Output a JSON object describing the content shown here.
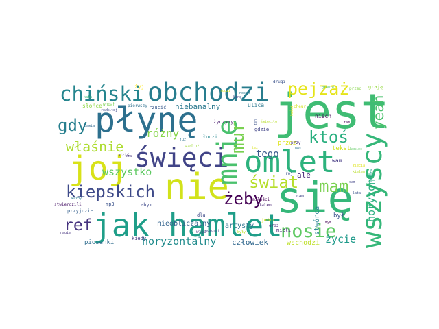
{
  "words": [
    {
      "id": "jest",
      "text": "jest",
      "color": "#3fbc73"
    },
    {
      "id": "sie",
      "text": "się",
      "color": "#35b779"
    },
    {
      "id": "nie",
      "text": "nie",
      "color": "#d2e21b"
    },
    {
      "id": "jak-hamlet",
      "text": "jak hamlet",
      "color": "#1f9e89"
    },
    {
      "id": "plyne",
      "text": "płynę",
      "color": "#2d708e"
    },
    {
      "id": "joj",
      "text": "joj",
      "color": "#d8e219"
    },
    {
      "id": "omlet",
      "text": "omlet",
      "color": "#2db27d"
    },
    {
      "id": "obchodzi",
      "text": "obchodzi",
      "color": "#287d8e"
    },
    {
      "id": "swieci",
      "text": "święci",
      "color": "#414487"
    },
    {
      "id": "wszyscy",
      "text": "wszyscy",
      "color": "#35b779"
    },
    {
      "id": "mnie",
      "text": "mnie",
      "color": "#4ac16d"
    },
    {
      "id": "chinski",
      "text": "chiński",
      "color": "#25858e"
    },
    {
      "id": "pejzaz",
      "text": "pejzaż",
      "color": "#e5e419"
    },
    {
      "id": "kiepskich",
      "text": "kiepskich",
      "color": "#3e4a89"
    },
    {
      "id": "nosie",
      "text": "nosie",
      "color": "#5ec962"
    },
    {
      "id": "mam",
      "text": "mam",
      "color": "#7ad151"
    },
    {
      "id": "swiat",
      "text": "świat",
      "color": "#b5de2b"
    },
    {
      "id": "mur",
      "text": "mur",
      "color": "#7ad151"
    },
    {
      "id": "ktos",
      "text": "ktoś",
      "color": "#29af7f"
    },
    {
      "id": "zeby",
      "text": "żeby",
      "color": "#440154"
    },
    {
      "id": "ref",
      "text": "ref",
      "color": "#46337e"
    },
    {
      "id": "gdy",
      "text": "gdy",
      "color": "#277f8e"
    },
    {
      "id": "wlasnie",
      "text": "właśnie",
      "color": "#addc30"
    },
    {
      "id": "yeah",
      "text": "yeah",
      "color": "#4ac16d"
    },
    {
      "id": "horyzontalny",
      "text": "horyzontalny",
      "color": "#228c8d"
    },
    {
      "id": "horyzont",
      "text": "horyzont",
      "color": "#29af7f"
    },
    {
      "id": "wszystko",
      "text": "wszystko",
      "color": "#5ec962"
    },
    {
      "id": "rozny",
      "text": "różny",
      "color": "#86d549"
    },
    {
      "id": "tego",
      "text": "tego",
      "color": "#38598c"
    },
    {
      "id": "zycie",
      "text": "życie",
      "color": "#1f9a8a"
    },
    {
      "id": "niebanalny",
      "text": "niebanalny",
      "color": "#2a788e"
    },
    {
      "id": "czlowiek",
      "text": "człowiek",
      "color": "#31688e"
    },
    {
      "id": "wschodzi",
      "text": "wschodzi",
      "color": "#bddf26"
    },
    {
      "id": "nieoblicz",
      "text": "nieobliczalny",
      "color": "#33638d"
    },
    {
      "id": "artysty",
      "text": "artysty",
      "color": "#2c728e"
    },
    {
      "id": "piosenki",
      "text": "piosenki",
      "color": "#2f6c8e"
    },
    {
      "id": "stworca",
      "text": "stwórca",
      "color": "#25838e"
    },
    {
      "id": "przez",
      "text": "przez",
      "color": "#dde318"
    },
    {
      "id": "ale",
      "text": "ale",
      "color": "#482878"
    },
    {
      "id": "byl",
      "text": "był",
      "color": "#3b528b"
    },
    {
      "id": "tekst",
      "text": "tekst",
      "color": "#d0e11c"
    },
    {
      "id": "wam",
      "text": "wam",
      "color": "#443983"
    },
    {
      "id": "mialem",
      "text": "miałem",
      "color": "#482173"
    },
    {
      "id": "kiedy",
      "text": "kiedy",
      "color": "#453882"
    },
    {
      "id": "slonce",
      "text": "słońce",
      "color": "#8fd744"
    },
    {
      "id": "zyczymy",
      "text": "życzymy",
      "color": "#481b6d"
    },
    {
      "id": "ulica",
      "text": "ulica",
      "color": "#2a788e"
    },
    {
      "id": "gdzie",
      "text": "gdzie",
      "color": "#414487"
    },
    {
      "id": "mp3",
      "text": "mp3",
      "color": "#3b528b"
    },
    {
      "id": "abym",
      "text": "abym",
      "color": "#3e4989"
    },
    {
      "id": "wiec",
      "text": "więc",
      "color": "#472d7b"
    },
    {
      "id": "przyjdzie",
      "text": "przyjdzie",
      "color": "#35608d"
    },
    {
      "id": "rzucic",
      "text": "rzucić",
      "color": "#38588c"
    },
    {
      "id": "pierwszy",
      "text": "pierwszy",
      "color": "#2d708e"
    },
    {
      "id": "whoah",
      "text": "whoah",
      "color": "#7ad151"
    },
    {
      "id": "zyj",
      "text": "żyj",
      "color": "#fde725"
    },
    {
      "id": "mieli",
      "text": "mieli",
      "color": "#482878"
    },
    {
      "id": "jeden",
      "text": "jeden",
      "color": "#e2e418"
    },
    {
      "id": "cheur",
      "text": "cheur",
      "color": "#d2e21b"
    },
    {
      "id": "niech",
      "text": "niech",
      "color": "#46075a"
    },
    {
      "id": "graja",
      "text": "grają",
      "color": "#95d840"
    },
    {
      "id": "przed",
      "text": "przed",
      "color": "#86d549"
    },
    {
      "id": "drugi",
      "text": "drugi",
      "color": "#3b528b"
    },
    {
      "id": "glowie",
      "text": "głowie",
      "color": "#4ac16d"
    },
    {
      "id": "lodzi",
      "text": "łodzi",
      "color": "#24868e"
    },
    {
      "id": "wzdluz",
      "text": "wzdłuż",
      "color": "#9fda3a"
    },
    {
      "id": "oraz",
      "text": "oraz",
      "color": "#482475"
    },
    {
      "id": "dla",
      "text": "dla",
      "color": "#3e4a89"
    },
    {
      "id": "byly",
      "text": "były",
      "color": "#bddf26"
    },
    {
      "id": "nam",
      "text": "nam",
      "color": "#414487"
    },
    {
      "id": "roj",
      "text": "rój",
      "color": "#3b528b"
    },
    {
      "id": "mimo",
      "text": "miłości",
      "color": "#440154"
    },
    {
      "id": "dzis",
      "text": "dziś",
      "color": "#46337e"
    },
    {
      "id": "juz",
      "text": "już",
      "color": "#2c728e"
    },
    {
      "id": "stwierdzili",
      "text": "stwierdzili",
      "color": "#481668"
    },
    {
      "id": "kazdy",
      "text": "każdy",
      "color": "#2a788e"
    },
    {
      "id": "nagie",
      "text": "nagie",
      "color": "#46337e"
    },
    {
      "id": "bawia",
      "text": "bawią",
      "color": "#31688e"
    },
    {
      "id": "koniec",
      "text": "koniec",
      "color": "#5ec962"
    },
    {
      "id": "zieciac",
      "text": "zlecia",
      "color": "#dde318"
    },
    {
      "id": "kiedys",
      "text": "kiełem",
      "color": "#b8de29"
    },
    {
      "id": "sam",
      "text": "sam",
      "color": "#414487"
    },
    {
      "id": "lata",
      "text": "lata",
      "color": "#3b528b"
    },
    {
      "id": "umiera",
      "text": "umiera",
      "color": "#1e9b8a"
    },
    {
      "id": "rozbitej",
      "text": "rozbitej",
      "color": "#3e4989"
    },
    {
      "id": "kata",
      "text": "kata",
      "color": "#35b779"
    },
    {
      "id": "kine",
      "text": "kinę",
      "color": "#3e4a89"
    },
    {
      "id": "tam",
      "text": "tam",
      "color": "#440154"
    },
    {
      "id": "ten",
      "text": "ten",
      "color": "#3b528b"
    },
    {
      "id": "nos",
      "text": "nos",
      "color": "#2c728e"
    },
    {
      "id": "przy",
      "text": "przy",
      "color": "#46337e"
    },
    {
      "id": "kosci",
      "text": "kości",
      "color": "#fde725"
    },
    {
      "id": "tez",
      "text": "też",
      "color": "#d8e219"
    },
    {
      "id": "wczoraj",
      "text": "wczoraj",
      "color": "#3e4989"
    },
    {
      "id": "zza",
      "text": "zza",
      "color": "#46337e"
    },
    {
      "id": "sciecio",
      "text": "świeciło",
      "color": "#b8de29"
    },
    {
      "id": "rodzi",
      "text": "rodzi",
      "color": "#dde318"
    },
    {
      "id": "nosem",
      "text": "nosem",
      "color": "#2a788e"
    },
    {
      "id": "mym",
      "text": "mym",
      "color": "#440154"
    }
  ]
}
